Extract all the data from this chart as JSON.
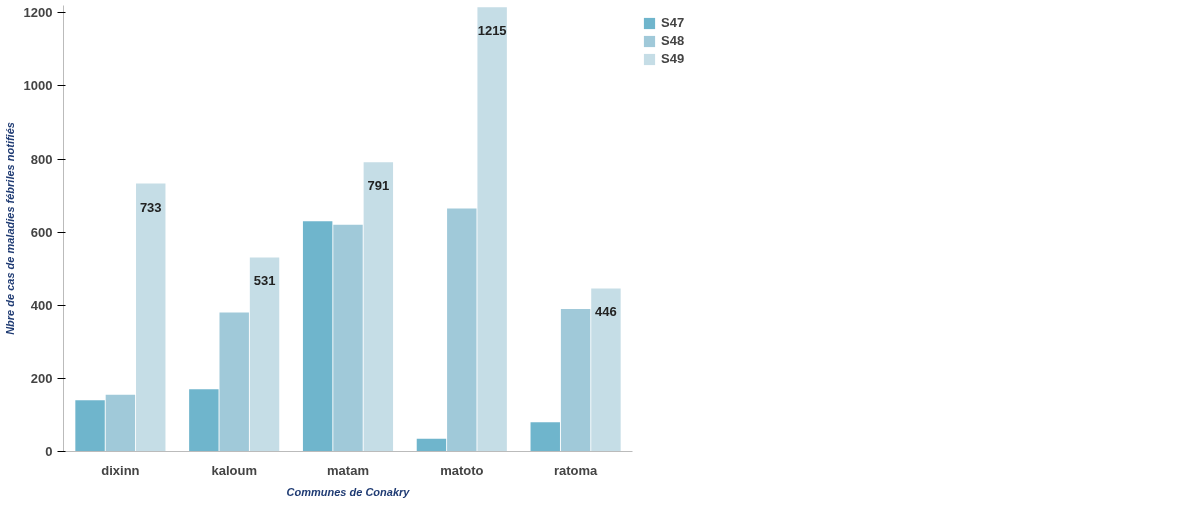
{
  "chart_data": {
    "type": "bar",
    "xlabel": "Communes de Conakry",
    "ylabel": "Nbre de cas de maladies fébriles notifiés",
    "categories": [
      "dixinn",
      "kaloum",
      "matam",
      "matoto",
      "ratoma"
    ],
    "series": [
      {
        "name": "S47",
        "color": "#6fb5cc",
        "values": [
          140,
          170,
          630,
          35,
          80
        ]
      },
      {
        "name": "S48",
        "color": "#a0c9d9",
        "values": [
          155,
          380,
          620,
          665,
          390
        ]
      },
      {
        "name": "S49",
        "color": "#c5dde6",
        "values": [
          733,
          531,
          791,
          1215,
          446
        ],
        "value_labels": [
          "733",
          "531",
          "791",
          "1215",
          "446"
        ]
      }
    ],
    "ylim": [
      0,
      1220
    ],
    "yticks": [
      0,
      200,
      400,
      600,
      800,
      1000,
      1200
    ],
    "grid": false,
    "legend": "top right"
  }
}
